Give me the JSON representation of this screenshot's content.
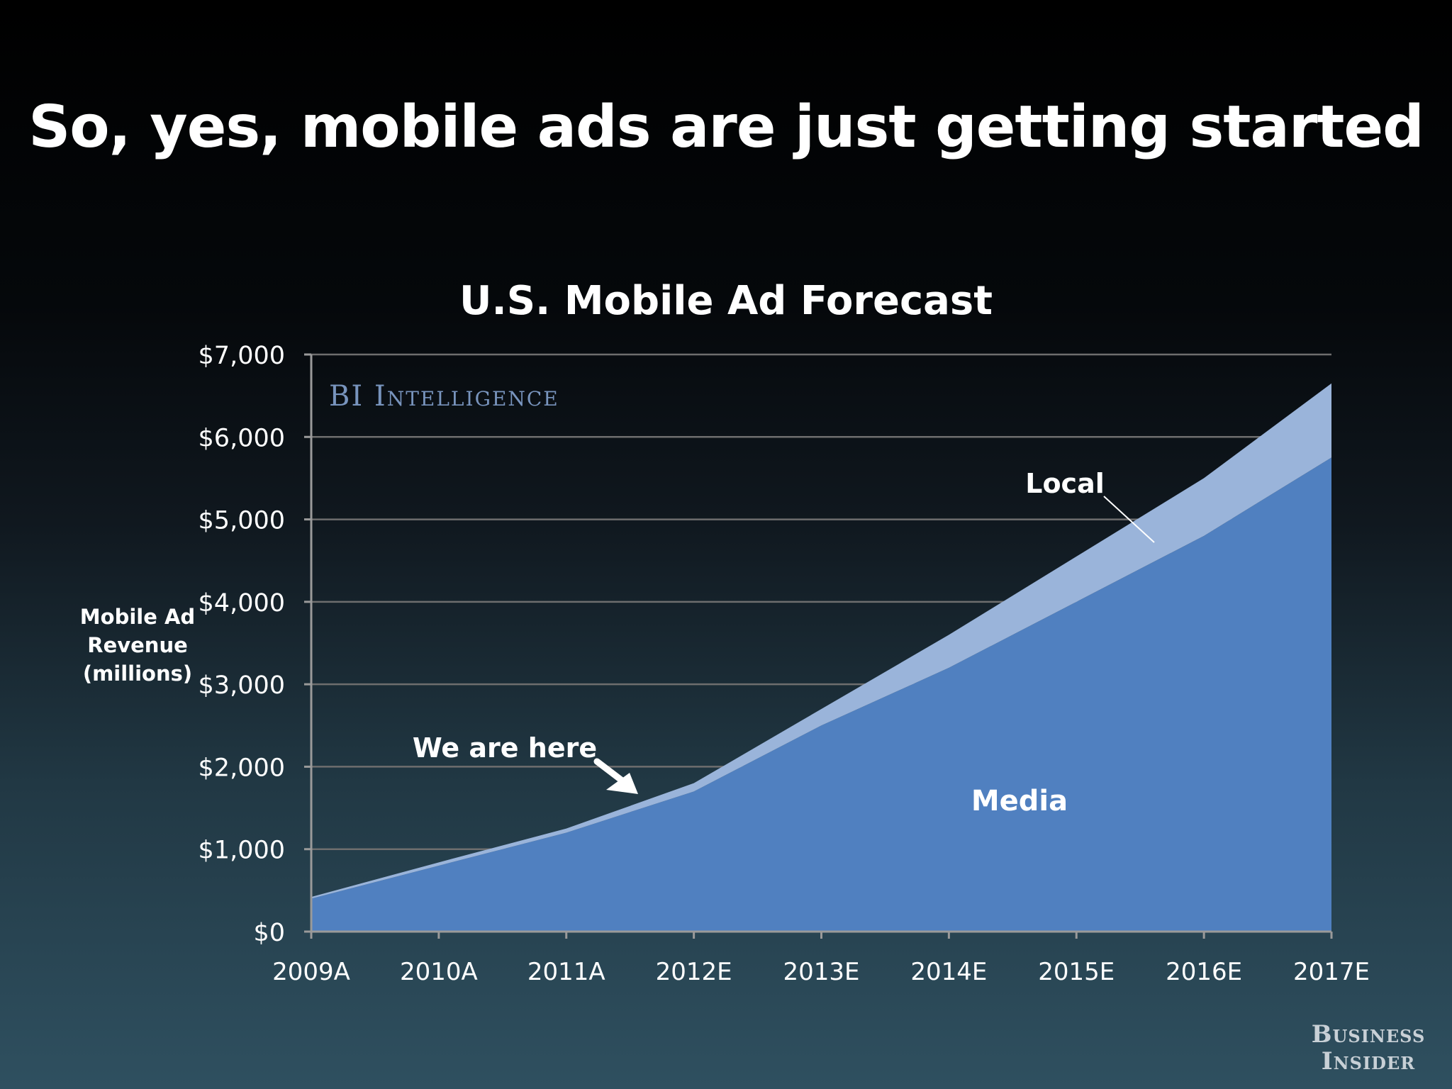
{
  "slide": {
    "title": "So, yes, mobile ads are just getting started"
  },
  "logo": {
    "line1": "Business",
    "line2": "Insider"
  },
  "colors": {
    "media": "#5080c0",
    "local": "#9ab4da",
    "grid": "#6e6e6e",
    "axis": "#9a9a9a",
    "text": "#ffffff",
    "watermark": "#7894bd"
  },
  "chart_data": {
    "type": "area",
    "title": "U.S. Mobile Ad Forecast",
    "ylabel": "Mobile Ad Revenue (millions)",
    "xlabel": "",
    "watermark": "BI Intelligence",
    "categories": [
      "2009A",
      "2010A",
      "2011A",
      "2012E",
      "2013E",
      "2014E",
      "2015E",
      "2016E",
      "2017E"
    ],
    "series": [
      {
        "name": "Media",
        "values": [
          400,
          800,
          1200,
          1700,
          2500,
          3200,
          4000,
          4800,
          5750
        ]
      },
      {
        "name": "Local",
        "values": [
          20,
          40,
          50,
          100,
          200,
          400,
          550,
          700,
          900
        ]
      }
    ],
    "stacked": true,
    "ylim": [
      0,
      7000
    ],
    "yticks": [
      0,
      1000,
      2000,
      3000,
      4000,
      5000,
      6000,
      7000
    ],
    "ytick_labels": [
      "$0",
      "$1,000",
      "$2,000",
      "$3,000",
      "$4,000",
      "$5,000",
      "$6,000",
      "$7,000"
    ],
    "grid": true,
    "annotations": [
      {
        "text": "We are here",
        "arrow": true
      },
      {
        "text": "Local",
        "series": "Local"
      },
      {
        "text": "Media",
        "series": "Media"
      }
    ]
  }
}
